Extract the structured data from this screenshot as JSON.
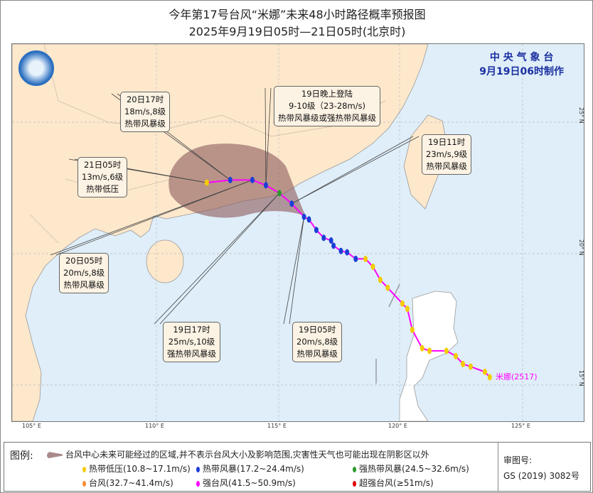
{
  "title": "今年第17号台风“米娜”未来48小时路径概率预报图",
  "subtitle": "2025年9月19日05时—21日05时(北京时)",
  "agency": {
    "name": "中 央 气 象 台",
    "issued": "9月19日06时制作"
  },
  "typhoon_label": "米娜(2517)",
  "axes": {
    "lon": [
      "105° E",
      "110° E",
      "115° E",
      "120° E",
      "125° E"
    ],
    "lat": [
      "25° N",
      "20° N",
      "15° N"
    ]
  },
  "colors": {
    "sea": "#dfeef9",
    "land": "#fde8cc",
    "cone": "#9c6f6f",
    "track": "#ff00ff",
    "TD": "#f2cc00",
    "TS": "#1c3fd6",
    "STS": "#2c9a2c",
    "TY": "#ff8c3a",
    "STY": "#ff00ff",
    "SuperTY": "#e00000"
  },
  "track": [
    [
      123.55,
      15.3,
      "TD"
    ],
    [
      123.35,
      15.5,
      "TD"
    ],
    [
      122.77,
      15.7,
      "TD"
    ],
    [
      122.46,
      15.8,
      "TD"
    ],
    [
      122.17,
      16.1,
      "TD"
    ],
    [
      121.79,
      16.3,
      "TD"
    ],
    [
      121.1,
      16.3,
      "TD"
    ],
    [
      120.8,
      16.4,
      "TD"
    ],
    [
      120.4,
      17.1,
      "TD"
    ],
    [
      120.2,
      17.9,
      "TD"
    ],
    [
      120.0,
      18.1,
      "TD"
    ],
    [
      119.4,
      18.7,
      "TD"
    ],
    [
      119.1,
      19.0,
      "TD"
    ],
    [
      118.8,
      19.5,
      "TD"
    ],
    [
      118.5,
      19.8,
      "TD"
    ],
    [
      118.1,
      19.8,
      "TS"
    ],
    [
      117.75,
      20.05,
      "TS"
    ],
    [
      117.5,
      20.1,
      "TS"
    ],
    [
      117.2,
      20.3,
      "TS"
    ],
    [
      117.1,
      20.5,
      "TS"
    ],
    [
      116.8,
      20.6,
      "TS"
    ],
    [
      116.5,
      20.9,
      "TS"
    ],
    [
      116.2,
      21.3,
      "TS"
    ],
    [
      116.0,
      21.4,
      "TS"
    ],
    [
      115.5,
      21.9,
      "TS"
    ],
    [
      115.0,
      22.3,
      "STS"
    ],
    [
      114.45,
      22.6,
      "TS"
    ],
    [
      113.9,
      22.8,
      "TS"
    ],
    [
      113.0,
      22.8,
      "TS"
    ],
    [
      112.05,
      22.7,
      "TD"
    ]
  ],
  "annotations": [
    {
      "lines": [
        "20日17时",
        "18m/s,8级",
        "热带风暴级"
      ],
      "point": 28
    },
    {
      "lines": [
        "21日05时",
        "13m/s,6级",
        "热带低压"
      ],
      "point": 29
    },
    {
      "lines": [
        "19日晚上登陆",
        "9-10级（23-28m/s)",
        "热带风暴级或强热带风暴级"
      ],
      "point": 26
    },
    {
      "lines": [
        "19日11时",
        "23m/s,9级",
        "热带风暴级"
      ],
      "point": 24
    },
    {
      "lines": [
        "20日05时",
        "20m/s,8级",
        "热带风暴级"
      ],
      "point": 27
    },
    {
      "lines": [
        "19日17时",
        "25m/s,10级",
        "强热带风暴级"
      ],
      "point": 25
    },
    {
      "lines": [
        "19日05时",
        "20m/s,8级",
        "热带风暴级"
      ],
      "point": 23
    }
  ],
  "legend": {
    "heading": "图例:",
    "cone_text": "台风中心未来可能经过的区域,并不表示台风大小及影响范围,灾害性天气也可能出现在阴影区以外",
    "items": [
      {
        "label": "热带低压(10.8~17.1m/s)",
        "key": "TD"
      },
      {
        "label": "热带风暴(17.2~24.4m/s)",
        "key": "TS"
      },
      {
        "label": "强热带风暴(24.5~32.6m/s)",
        "key": "STS"
      },
      {
        "label": "台风(32.7~41.4m/s)",
        "key": "TY"
      },
      {
        "label": "强台风(41.5~50.9m/s)",
        "key": "STY"
      },
      {
        "label": "超强台风(≥51m/s)",
        "key": "SuperTY"
      }
    ],
    "approval_label": "审图号:",
    "approval_code": "GS (2019) 3082号"
  }
}
